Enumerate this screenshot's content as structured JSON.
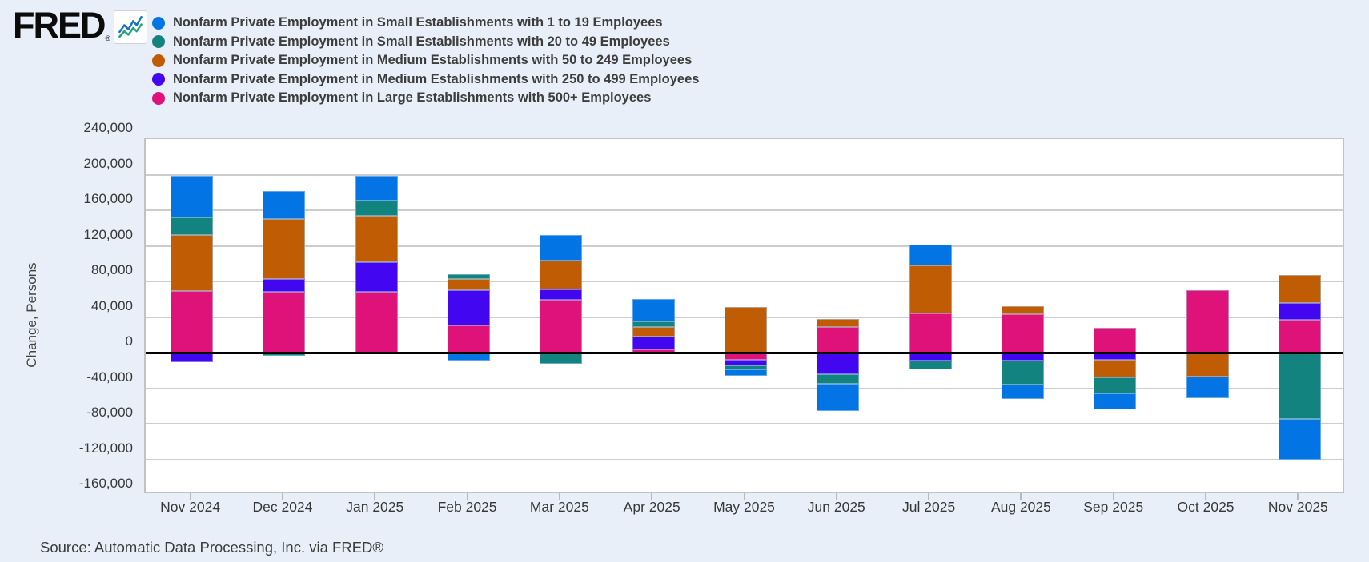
{
  "header": {
    "logo_text": "FRED",
    "logo_registered": "®"
  },
  "legend": {
    "items": [
      {
        "label": "Nonfarm Private Employment in Small Establishments with 1 to 19 Employees",
        "color": "#0374e3"
      },
      {
        "label": "Nonfarm Private Employment in Small Establishments with 20 to 49 Employees",
        "color": "#12837e"
      },
      {
        "label": "Nonfarm Private Employment in Medium Establishments with 50 to 249 Employees",
        "color": "#c05c04"
      },
      {
        "label": "Nonfarm Private Employment in Medium Establishments with 250 to 499 Employees",
        "color": "#4306f0"
      },
      {
        "label": "Nonfarm Private Employment in Large Establishments with 500+ Employees",
        "color": "#de1279"
      }
    ]
  },
  "y_axis": {
    "label": "Change, Persons",
    "ticks": [
      "240,000",
      "200,000",
      "160,000",
      "120,000",
      "80,000",
      "40,000",
      "0",
      "-40,000",
      "-80,000",
      "-120,000",
      "-160,000"
    ]
  },
  "x_axis": {
    "labels": [
      "Nov 2024",
      "Dec 2024",
      "Jan 2025",
      "Feb 2025",
      "Mar 2025",
      "Apr 2025",
      "May 2025",
      "Jun 2025",
      "Jul 2025",
      "Aug 2025",
      "Sep 2025",
      "Oct 2025",
      "Nov 2025"
    ]
  },
  "source": "Source: Automatic Data Processing, Inc. via FRED®",
  "chart_data": {
    "type": "bar",
    "stacked": true,
    "title": "",
    "xlabel": "",
    "ylabel": "Change, Persons",
    "ylim": [
      -160000,
      240000
    ],
    "ytick_step": 40000,
    "grid": true,
    "zero_line": true,
    "legend_position": "top-left",
    "stack_order": "last-series-nearest-zero",
    "categories": [
      "Nov 2024",
      "Dec 2024",
      "Jan 2025",
      "Feb 2025",
      "Mar 2025",
      "Apr 2025",
      "May 2025",
      "Jun 2025",
      "Jul 2025",
      "Aug 2025",
      "Sep 2025",
      "Oct 2025",
      "Nov 2025"
    ],
    "series": [
      {
        "name": "Nonfarm Private Employment in Small Establishments with 1 to 19 Employees",
        "color": "#0374e3",
        "values": [
          47000,
          32000,
          28000,
          -9000,
          29000,
          25000,
          -7000,
          -31000,
          23000,
          -16000,
          -18000,
          -24000,
          -45000
        ]
      },
      {
        "name": "Nonfarm Private Employment in Small Establishments with 20 to 49 Employees",
        "color": "#12837e",
        "values": [
          20000,
          -4000,
          17000,
          5000,
          -13000,
          6000,
          -5000,
          -11000,
          -10000,
          -27000,
          -18000,
          0,
          -75000
        ]
      },
      {
        "name": "Nonfarm Private Employment in Medium Establishments with 50 to 249 Employees",
        "color": "#c05c04",
        "values": [
          63000,
          67000,
          52000,
          13000,
          32000,
          11000,
          51000,
          9000,
          54000,
          9000,
          -20000,
          -27000,
          31000
        ]
      },
      {
        "name": "Nonfarm Private Employment in Medium Establishments with 250 to 499 Employees",
        "color": "#4306f0",
        "values": [
          -11000,
          15000,
          34000,
          39000,
          12000,
          14000,
          -6000,
          -24000,
          -9000,
          -9000,
          -8000,
          0,
          19000
        ]
      },
      {
        "name": "Nonfarm Private Employment in Large Establishments with 500+ Employees",
        "color": "#de1279",
        "values": [
          69000,
          68000,
          68000,
          31000,
          59000,
          4000,
          -8000,
          29000,
          44000,
          43000,
          28000,
          70000,
          37000
        ]
      }
    ]
  }
}
